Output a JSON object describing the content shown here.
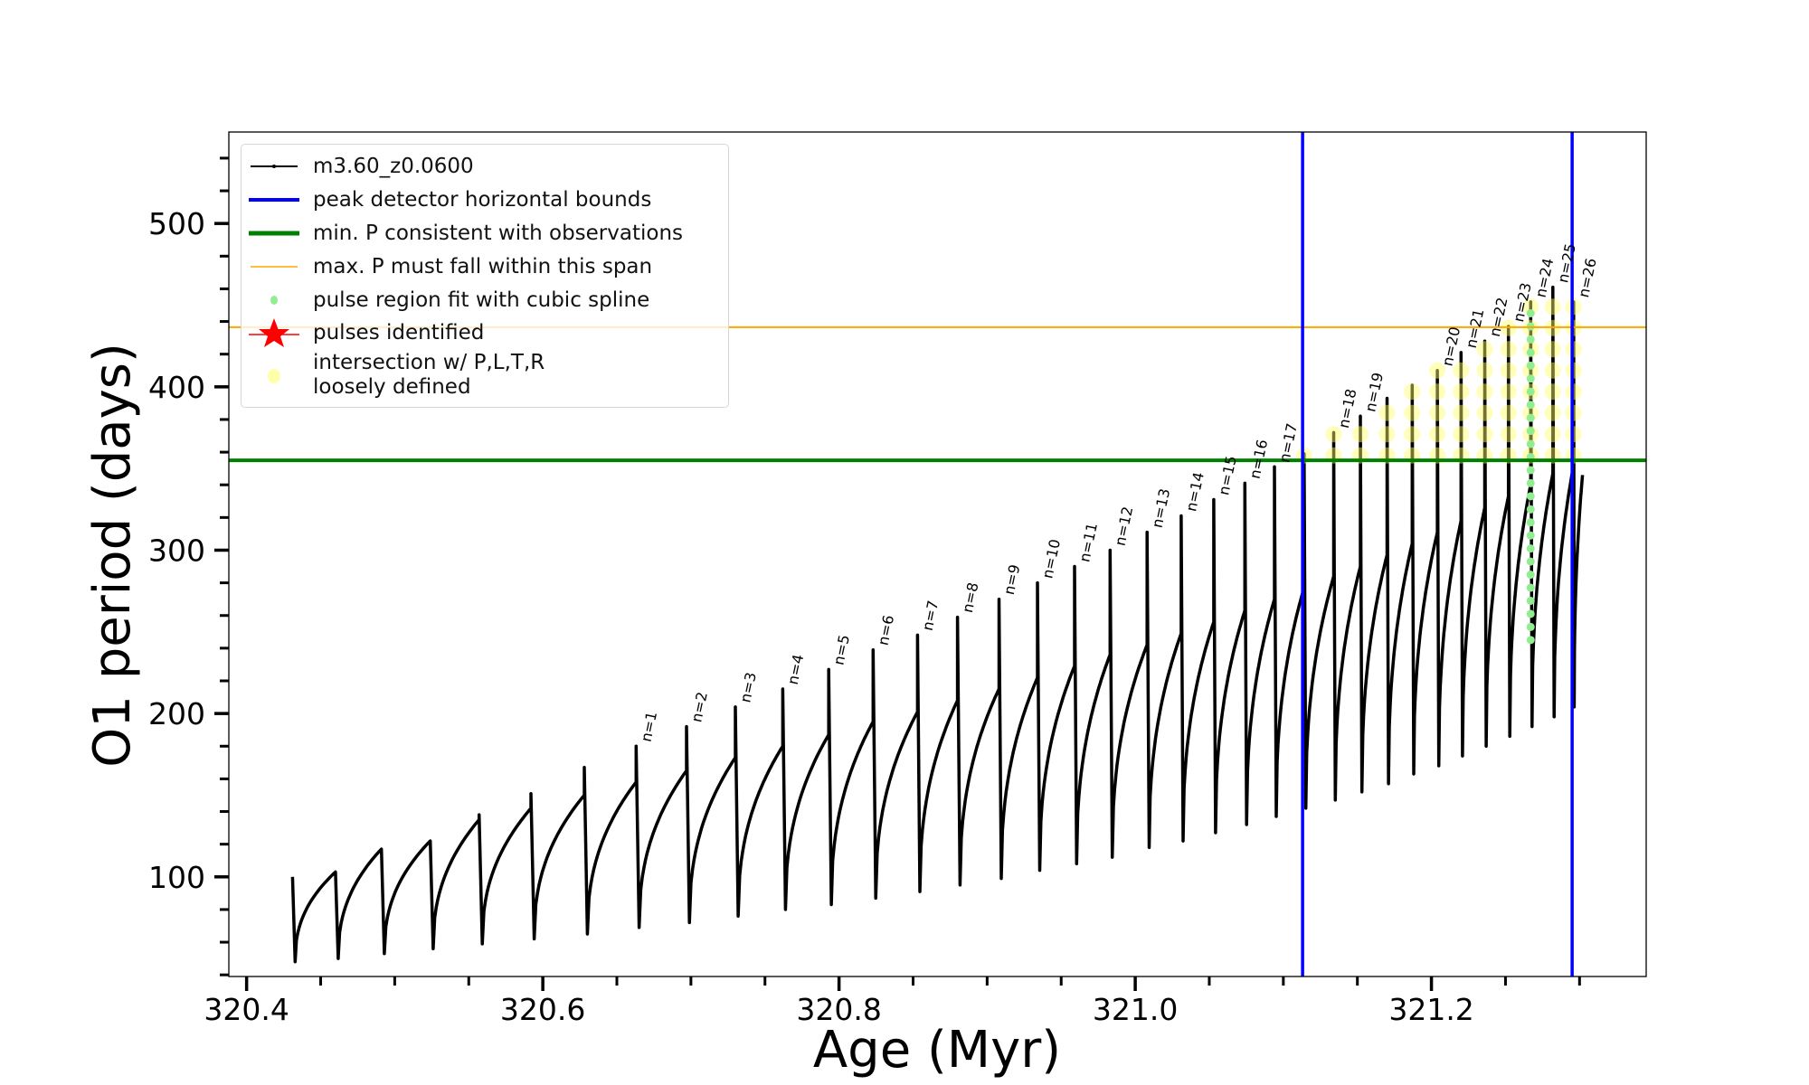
{
  "chart_data": {
    "type": "line",
    "title": "",
    "xlabel": "Age (Myr)",
    "ylabel": "O1 period (days)",
    "xlim": [
      320.388,
      321.345
    ],
    "ylim": [
      39,
      556
    ],
    "x_ticks": [
      "320.4",
      "320.6",
      "320.8",
      "321.0",
      "321.2"
    ],
    "x_tick_values": [
      320.4,
      320.6,
      320.8,
      321.0,
      321.2
    ],
    "x_minor_step": 0.05,
    "y_ticks": [
      "100",
      "200",
      "300",
      "400",
      "500"
    ],
    "y_tick_values": [
      100,
      200,
      300,
      400,
      500
    ],
    "y_minor_step": 20,
    "grid": false,
    "legend_position": "top-left",
    "legend": [
      {
        "label": "m3.60_z0.0600",
        "color": "#000000",
        "kind": "line-dot"
      },
      {
        "label": "peak detector horizontal bounds",
        "color": "#0000ff",
        "kind": "line-thick"
      },
      {
        "label": "min. P consistent with observations",
        "color": "#008000",
        "kind": "line-thick"
      },
      {
        "label": "max. P must fall within this span",
        "color": "#ffa500",
        "kind": "line-thin"
      },
      {
        "label": "pulse region fit with cubic spline",
        "color": "#90ee90",
        "kind": "dot"
      },
      {
        "label": "pulses identified",
        "color": "#ff0000",
        "kind": "star"
      },
      {
        "label": "intersection w/ P,L,T,R",
        "label2": "loosely defined",
        "color": "#ffff99",
        "kind": "circle"
      }
    ],
    "vlines": [
      {
        "name": "peak-detector-bound-left",
        "x": 321.113,
        "color": "#0000ff"
      },
      {
        "name": "peak-detector-bound-right",
        "x": 321.295,
        "color": "#0000ff"
      }
    ],
    "hlines": [
      {
        "name": "min-period-line",
        "y": 355,
        "color": "#008000"
      },
      {
        "name": "max-period-line",
        "y": 436.5,
        "color": "#ffa500"
      }
    ],
    "series_name": "m3.60_z0.0600",
    "end_age": 321.302,
    "end_period": 346,
    "cycles": [
      {
        "age": 320.431,
        "top": 100,
        "min": 48,
        "next_max": 103,
        "label": ""
      },
      {
        "age": 320.46,
        "top": 103,
        "min": 50,
        "next_max": 117,
        "label": ""
      },
      {
        "age": 320.491,
        "top": 117,
        "min": 53,
        "next_max": 122,
        "label": ""
      },
      {
        "age": 320.524,
        "top": 122,
        "min": 56,
        "next_max": 135,
        "label": ""
      },
      {
        "age": 320.557,
        "top": 138,
        "min": 59,
        "next_max": 142,
        "label": ""
      },
      {
        "age": 320.592,
        "top": 151,
        "min": 62,
        "next_max": 150,
        "label": ""
      },
      {
        "age": 320.628,
        "top": 167,
        "min": 65,
        "next_max": 158,
        "label": ""
      },
      {
        "age": 320.663,
        "top": 180,
        "min": 69,
        "next_max": 165,
        "label": "n=1"
      },
      {
        "age": 320.697,
        "top": 192,
        "min": 72,
        "next_max": 173,
        "label": "n=2"
      },
      {
        "age": 320.73,
        "top": 204,
        "min": 76,
        "next_max": 180,
        "label": "n=3"
      },
      {
        "age": 320.762,
        "top": 215,
        "min": 80,
        "next_max": 187,
        "label": "n=4"
      },
      {
        "age": 320.793,
        "top": 227,
        "min": 83,
        "next_max": 195,
        "label": "n=5"
      },
      {
        "age": 320.823,
        "top": 239,
        "min": 87,
        "next_max": 201,
        "label": "n=6"
      },
      {
        "age": 320.853,
        "top": 248,
        "min": 91,
        "next_max": 208,
        "label": "n=7"
      },
      {
        "age": 320.88,
        "top": 259,
        "min": 95,
        "next_max": 215,
        "label": "n=8"
      },
      {
        "age": 320.908,
        "top": 270,
        "min": 99,
        "next_max": 222,
        "label": "n=9"
      },
      {
        "age": 320.934,
        "top": 280,
        "min": 104,
        "next_max": 229,
        "label": "n=10"
      },
      {
        "age": 320.959,
        "top": 290,
        "min": 108,
        "next_max": 236,
        "label": "n=11"
      },
      {
        "age": 320.983,
        "top": 300,
        "min": 112,
        "next_max": 242,
        "label": "n=12"
      },
      {
        "age": 321.008,
        "top": 311,
        "min": 118,
        "next_max": 249,
        "label": "n=13"
      },
      {
        "age": 321.031,
        "top": 321,
        "min": 122,
        "next_max": 256,
        "label": "n=14"
      },
      {
        "age": 321.053,
        "top": 331,
        "min": 127,
        "next_max": 263,
        "label": "n=15"
      },
      {
        "age": 321.074,
        "top": 341,
        "min": 132,
        "next_max": 270,
        "label": "n=16"
      },
      {
        "age": 321.094,
        "top": 351,
        "min": 137,
        "next_max": 277,
        "label": "n=17"
      },
      {
        "age": 321.114,
        "top": 359,
        "min": 142,
        "next_max": 284,
        "label": ""
      },
      {
        "age": 321.134,
        "top": 372,
        "min": 147,
        "next_max": 290,
        "label": "n=18"
      },
      {
        "age": 321.152,
        "top": 382,
        "min": 152,
        "next_max": 297,
        "label": "n=19"
      },
      {
        "age": 321.17,
        "top": 393,
        "min": 157,
        "next_max": 304,
        "label": ""
      },
      {
        "age": 321.187,
        "top": 401,
        "min": 163,
        "next_max": 311,
        "label": ""
      },
      {
        "age": 321.204,
        "top": 410,
        "min": 168,
        "next_max": 318,
        "label": "n=20"
      },
      {
        "age": 321.22,
        "top": 421,
        "min": 174,
        "next_max": 326,
        "label": "n=21"
      },
      {
        "age": 321.236,
        "top": 428,
        "min": 180,
        "next_max": 333,
        "label": "n=22"
      },
      {
        "age": 321.252,
        "top": 437,
        "min": 186,
        "next_max": 340,
        "label": "n=23"
      },
      {
        "age": 321.267,
        "top": 452,
        "min": 192,
        "next_max": 347,
        "label": "n=24"
      },
      {
        "age": 321.282,
        "top": 461,
        "min": 198,
        "next_max": 352,
        "label": "n=25"
      },
      {
        "age": 321.296,
        "top": 452,
        "min": 204,
        "next_max": 346,
        "label": "n=26"
      }
    ],
    "intersection_markers": {
      "from_age": 321.11,
      "p_min": 358,
      "p_step": 13
    },
    "spline_fit": {
      "age": 321.267,
      "p_from": 245,
      "p_to": 452,
      "p_step": 8
    }
  }
}
